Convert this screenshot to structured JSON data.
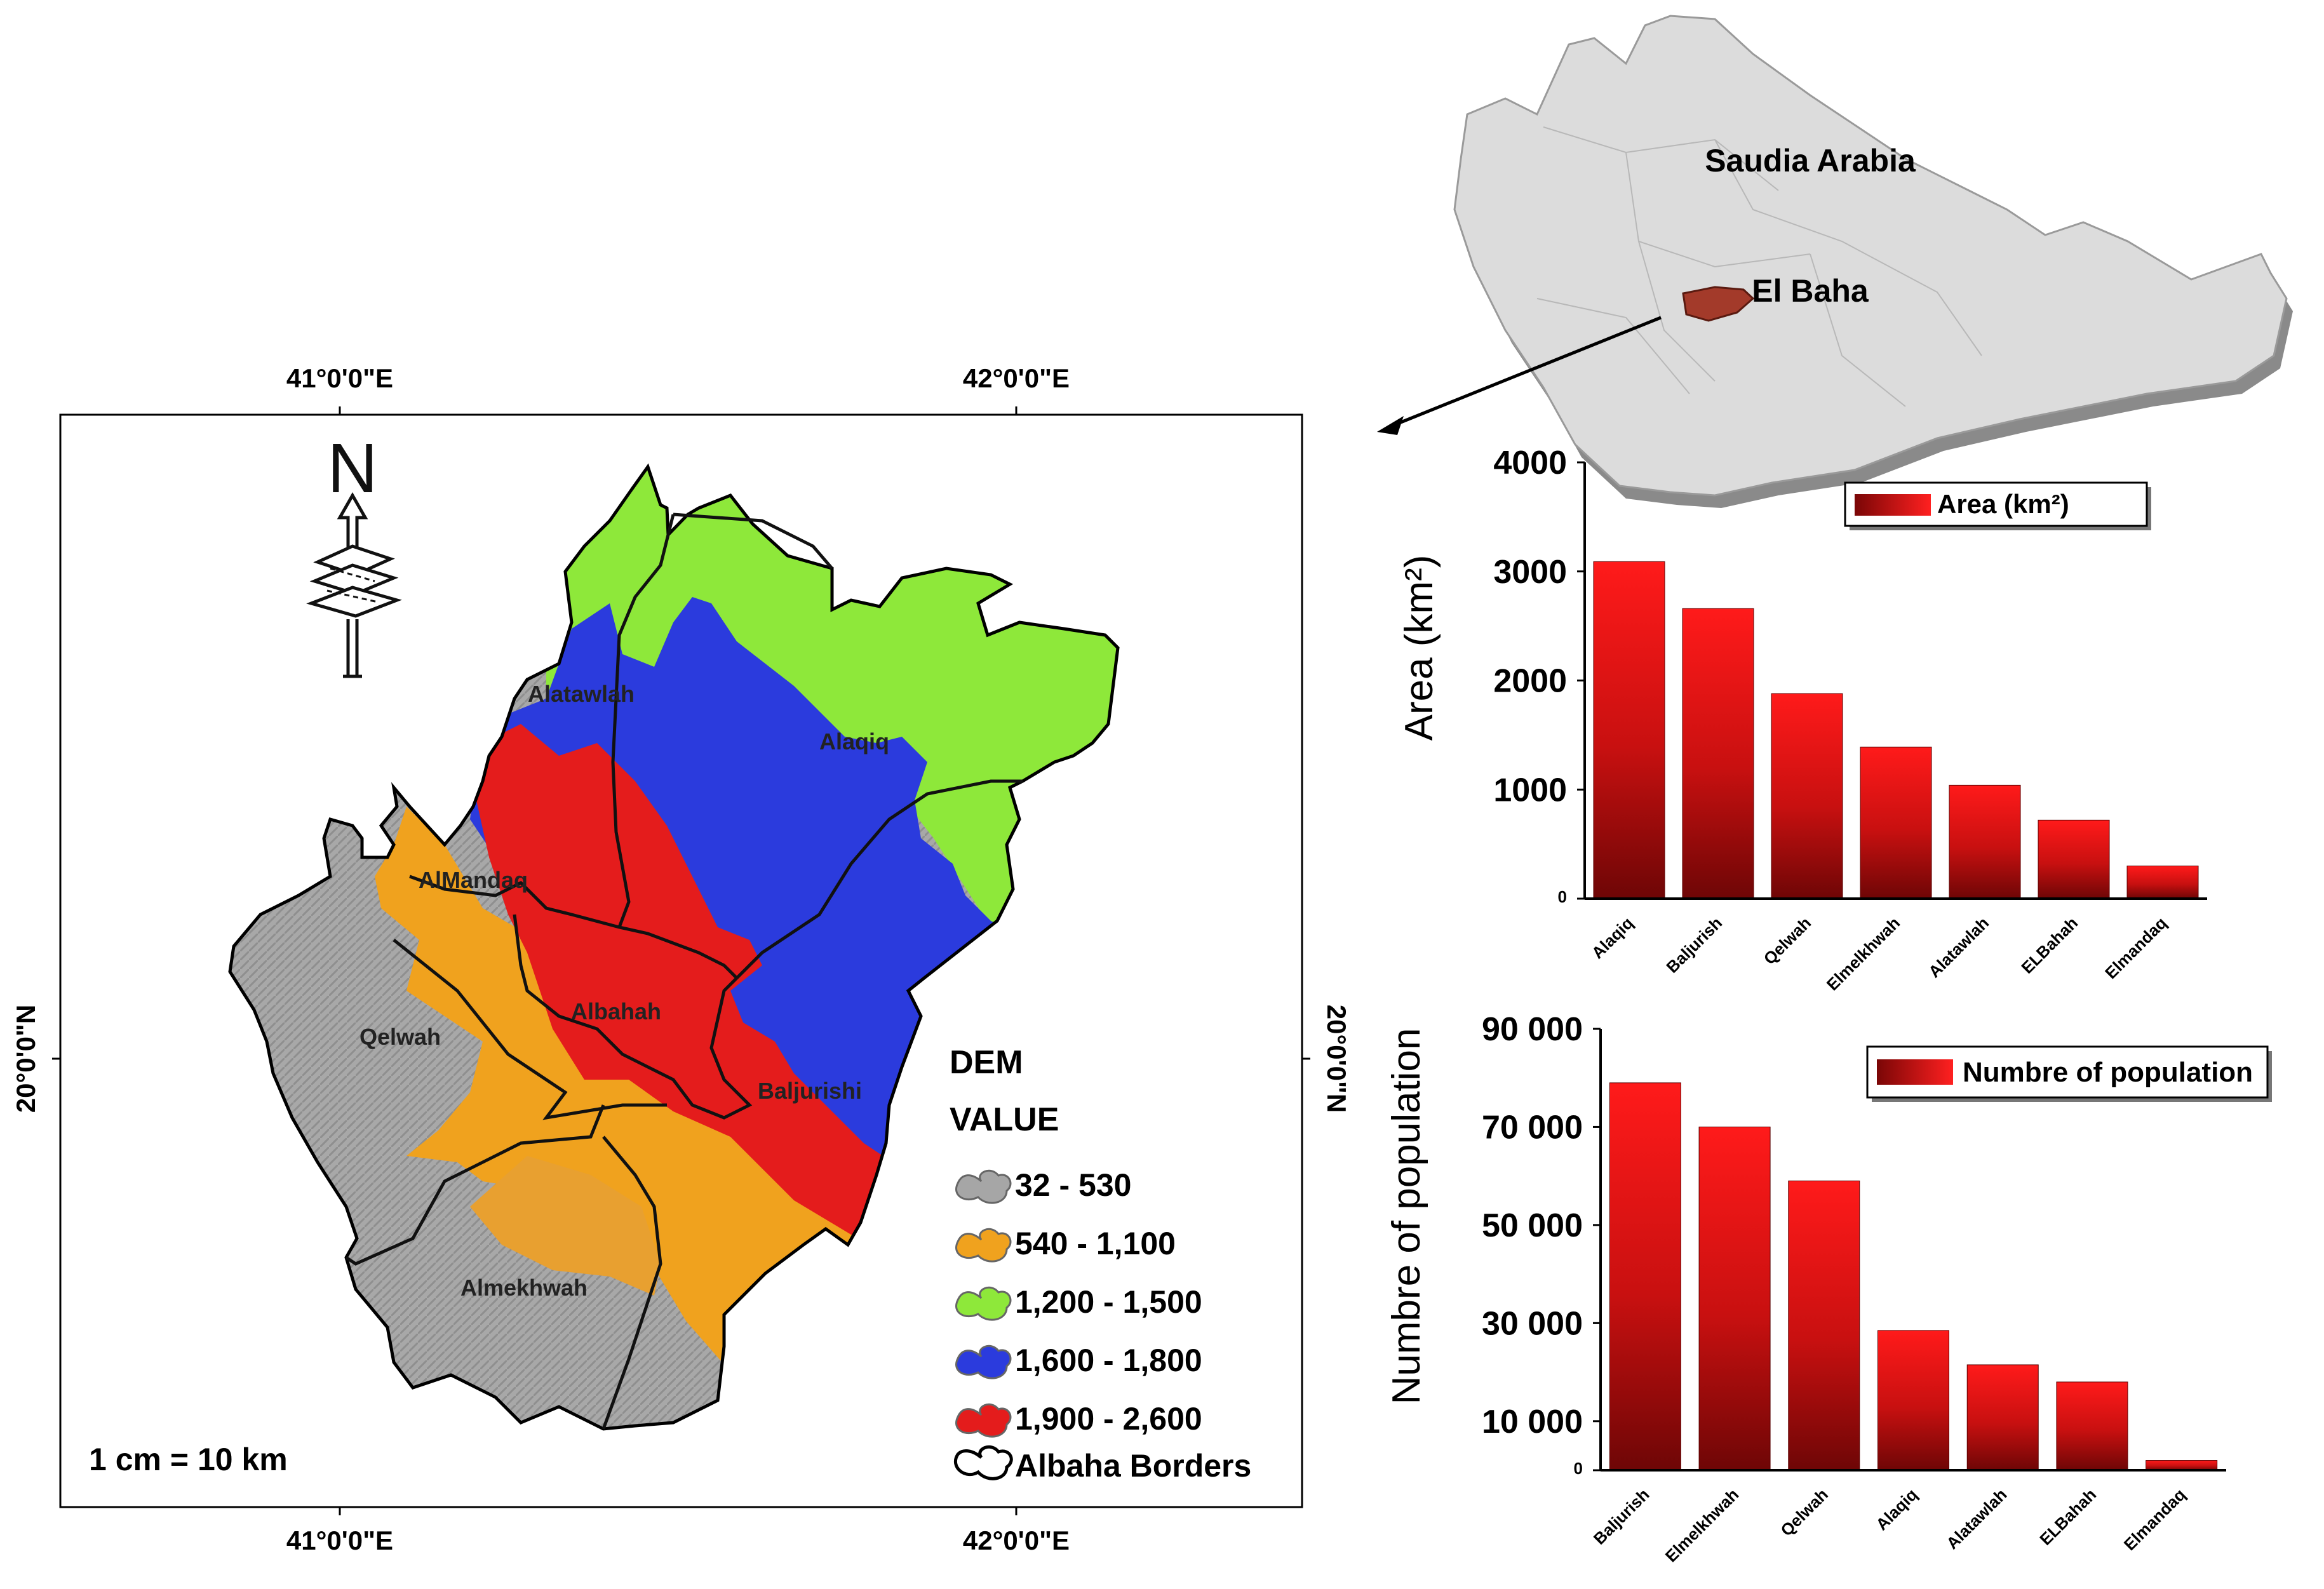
{
  "map": {
    "top_ticks": [
      "41°0'0\"E",
      "42°0'0\"E"
    ],
    "bottom_ticks": [
      "41°0'0\"E",
      "42°0'0\"E"
    ],
    "left_tick": "20°0'0\"N",
    "right_tick": "20°0'0\"N",
    "north_label": "N",
    "scale": "1 cm = 10 km",
    "regions": [
      "Alatawlah",
      "Alaqiq",
      "AlMandaq",
      "Qelwah",
      "Albahah",
      "Baljurishi",
      "Almekhwah"
    ],
    "legend": {
      "title_line1": "DEM",
      "title_line2": "VALUE",
      "items": [
        {
          "label": "32 - 530",
          "color": "#a6a6a6"
        },
        {
          "label": "540 - 1,100",
          "color": "#f0a21e"
        },
        {
          "label": "1,200 - 1,500",
          "color": "#8ee83a"
        },
        {
          "label": "1,600 - 1,800",
          "color": "#2b3bdd"
        },
        {
          "label": "1,900 - 2,600",
          "color": "#e41c1c"
        }
      ],
      "border_label": "Albaha Borders"
    }
  },
  "inset": {
    "country_label": "Saudia Arabia",
    "region_label": "El Baha"
  },
  "chart_data": [
    {
      "type": "bar",
      "title": "",
      "legend": "Area (km²)",
      "ylabel": "Area (km²)",
      "xlabel": "",
      "categories": [
        "Alaqiq",
        "Baljurish",
        "Qelwah",
        "Elmelkhwah",
        "Alatawlah",
        "ELBahah",
        "Elmandaq"
      ],
      "values": [
        3090,
        2660,
        1880,
        1390,
        1040,
        720,
        300
      ],
      "ylim": [
        0,
        4000
      ],
      "yticks": [
        "0",
        "1000",
        "2000",
        "3000",
        "4000"
      ],
      "color": "#d41414"
    },
    {
      "type": "bar",
      "title": "",
      "legend": "Numbre of population",
      "ylabel": "Numbre of population",
      "xlabel": "",
      "categories": [
        "Baljurish",
        "Elmelkhwah",
        "Qelwah",
        "Alaqiq",
        "Alatawlah",
        "ELBahah",
        "Elmandaq"
      ],
      "values": [
        79000,
        70000,
        59000,
        28500,
        21500,
        18000,
        2000
      ],
      "ylim": [
        0,
        90000
      ],
      "yticks": [
        "0",
        "10 000",
        "30 000",
        "50 000",
        "70 000",
        "90 000"
      ],
      "ytick_values": [
        0,
        10000,
        30000,
        50000,
        70000,
        90000
      ],
      "color": "#d41414"
    }
  ]
}
